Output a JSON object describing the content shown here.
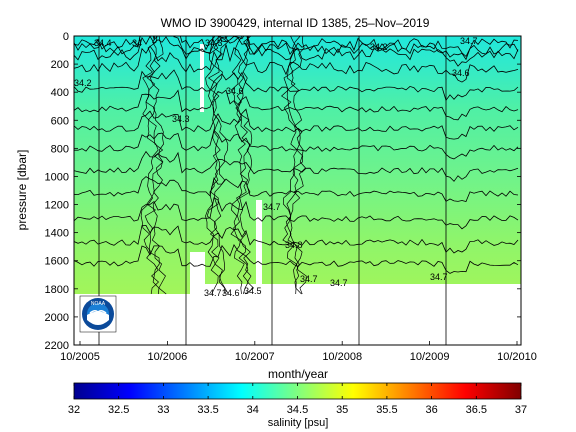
{
  "chart_data": {
    "type": "heatmap",
    "title": "WMO ID 3900429, internal ID 1385, 25–Nov–2019",
    "xlabel": "month/year",
    "ylabel": "pressure [dbar]",
    "x_ticks": [
      "10/2005",
      "10/2006",
      "10/2007",
      "10/2008",
      "10/2009",
      "10/2010"
    ],
    "x_range": [
      "10/2005",
      "10/2010"
    ],
    "y_ticks": [
      "0",
      "200",
      "400",
      "600",
      "800",
      "1000",
      "1200",
      "1400",
      "1600",
      "1800",
      "2000",
      "2200"
    ],
    "ylim": [
      2200,
      0
    ],
    "y_reversed": true,
    "colorbar": {
      "label": "salinity [psu]",
      "ticks": [
        "32",
        "32.5",
        "33",
        "33.5",
        "34",
        "34.5",
        "35",
        "35.5",
        "36",
        "36.5",
        "37"
      ],
      "range": [
        32,
        37
      ],
      "colormap": "jet"
    },
    "contour_labels": [
      "34",
      "34.2",
      "34.3",
      "34.6",
      "34.7",
      "34.8",
      "34.7",
      "34.7",
      "34.7",
      "34.6",
      "34.5",
      "34.2",
      "34.7",
      "34.6",
      "34.7",
      "34.4",
      "34.3"
    ],
    "field_summary": {
      "surface_salinity_psu": 34.0,
      "deep_salinity_psu": 34.72,
      "max_profile_pressure_dbar": 1780
    },
    "grid": false
  },
  "logo": {
    "text": "NOAA",
    "colors": {
      "outer": "#0b4a9a",
      "inner": "#1a7fd6",
      "white": "#ffffff",
      "gull": "#1b4c94"
    }
  },
  "colors": {
    "surface": "#2de6d2",
    "mid": "#5cf29a",
    "deep": "#9bf55c",
    "contour": "#000000",
    "frame": "#000000"
  }
}
